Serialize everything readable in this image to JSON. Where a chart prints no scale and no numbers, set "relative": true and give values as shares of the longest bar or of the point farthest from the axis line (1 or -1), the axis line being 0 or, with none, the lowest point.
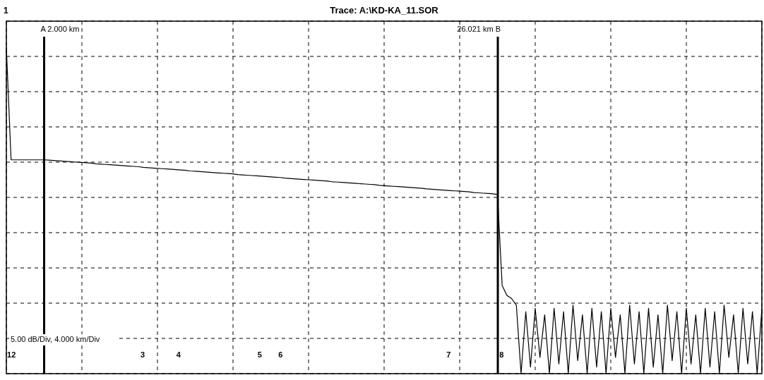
{
  "chart_data": {
    "type": "line",
    "title": "Trace: A:\\KD-KA_11.SOR",
    "relative": true,
    "grid": true,
    "marker": "none",
    "line_style": "solid",
    "categories": [
      null,
      null,
      null,
      null,
      null,
      null,
      null,
      null,
      null,
      null,
      null,
      null,
      null,
      null,
      null,
      null,
      null,
      null,
      null,
      null,
      null,
      null,
      null,
      null,
      null,
      null,
      null,
      null,
      null,
      null,
      null,
      null,
      null,
      null,
      null,
      null,
      null,
      null,
      null,
      null,
      null,
      null,
      null,
      null,
      null,
      null,
      null,
      null,
      null,
      null,
      null,
      null,
      null,
      null,
      null,
      null,
      null,
      null,
      null,
      null,
      null,
      null,
      null,
      null,
      null,
      null,
      null,
      null,
      null,
      null,
      null,
      null,
      null,
      null,
      null,
      null,
      null,
      null,
      null,
      null,
      null,
      null,
      null,
      null,
      null,
      null,
      null,
      null,
      null,
      null,
      null,
      null,
      null,
      null,
      null,
      null,
      null,
      null,
      null,
      null,
      null,
      null,
      null,
      null,
      null,
      null,
      null,
      null,
      null,
      null,
      null,
      null,
      null,
      null,
      null,
      null,
      null,
      null,
      null,
      null,
      null,
      null,
      null,
      null,
      null,
      null,
      null,
      null,
      null,
      null,
      null,
      null,
      null,
      null,
      null,
      null,
      null,
      null,
      null,
      null,
      null,
      null,
      null,
      null,
      null,
      null,
      null,
      null,
      null,
      null,
      null,
      null,
      null,
      null,
      null,
      null,
      null,
      null,
      null,
      null,
      null
    ],
    "series": [
      {
        "color": "#000000",
        "values": [
          1.0,
          0.655,
          0.655,
          0.655,
          0.655,
          0.655,
          0.655,
          0.655,
          0.655,
          0.654,
          0.653,
          0.652,
          0.651,
          0.65,
          0.649,
          0.648,
          0.647,
          0.646,
          0.645,
          0.643,
          0.642,
          0.641,
          0.64,
          0.639,
          0.638,
          0.637,
          0.636,
          0.635,
          0.634,
          0.632,
          0.631,
          0.63,
          0.629,
          0.628,
          0.627,
          0.626,
          0.625,
          0.624,
          0.623,
          0.621,
          0.62,
          0.619,
          0.618,
          0.617,
          0.616,
          0.615,
          0.614,
          0.613,
          0.612,
          0.61,
          0.609,
          0.608,
          0.607,
          0.606,
          0.605,
          0.604,
          0.603,
          0.602,
          0.601,
          0.599,
          0.598,
          0.597,
          0.596,
          0.595,
          0.594,
          0.593,
          0.592,
          0.591,
          0.59,
          0.588,
          0.587,
          0.586,
          0.585,
          0.584,
          0.583,
          0.582,
          0.581,
          0.58,
          0.579,
          0.577,
          0.576,
          0.575,
          0.574,
          0.573,
          0.572,
          0.571,
          0.57,
          0.569,
          0.568,
          0.566,
          0.565,
          0.564,
          0.563,
          0.562,
          0.561,
          0.56,
          0.559,
          0.558,
          0.557,
          0.555,
          0.554,
          0.553,
          0.552,
          0.551,
          0.549,
          0.27,
          0.24,
          0.23,
          0.21,
          0.0,
          0.19,
          0.02,
          0.2,
          0.05,
          0.18,
          0.0,
          0.2,
          0.03,
          0.19,
          0.0,
          0.21,
          0.04,
          0.18,
          0.0,
          0.2,
          0.02,
          0.19,
          0.0,
          0.2,
          0.05,
          0.18,
          0.0,
          0.21,
          0.03,
          0.19,
          0.0,
          0.2,
          0.02,
          0.18,
          0.0,
          0.21,
          0.04,
          0.19,
          0.0,
          0.2,
          0.03,
          0.18,
          0.0,
          0.2,
          0.02,
          0.19,
          0.0,
          0.21,
          0.05,
          0.18,
          0.0,
          0.2,
          0.03,
          0.19,
          0.0,
          0.2
        ]
      }
    ],
    "annotations": [
      "1",
      "5.00 dB/Div, 4.000 km/Div",
      "A 2.000 km",
      "26.021 km B",
      "12",
      "3",
      "4",
      "5",
      "6",
      "7",
      "8"
    ]
  }
}
